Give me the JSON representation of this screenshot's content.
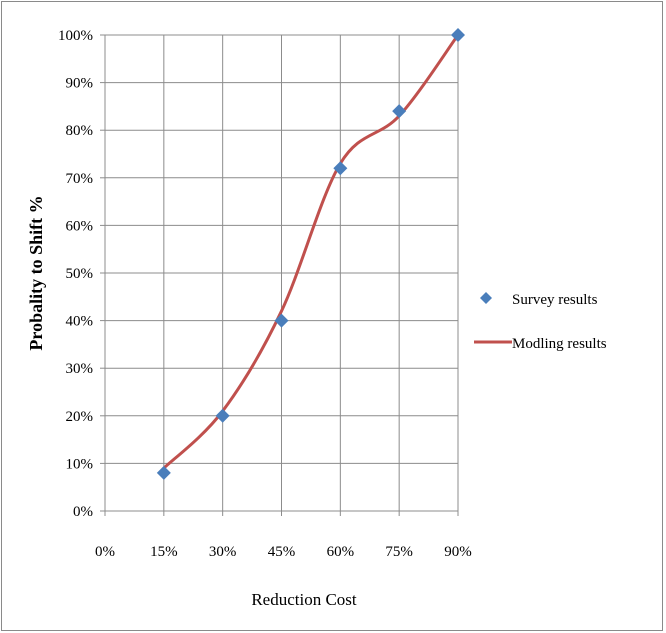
{
  "chart_data": {
    "type": "line",
    "x_label": "Reduction Cost",
    "y_label": "Probality  to Shift %",
    "x_ticks": [
      "0%",
      "15%",
      "30%",
      "45%",
      "60%",
      "75%",
      "90%"
    ],
    "y_ticks": [
      "0%",
      "10%",
      "20%",
      "30%",
      "40%",
      "50%",
      "60%",
      "70%",
      "80%",
      "90%",
      "100%"
    ],
    "xlim": [
      0,
      90
    ],
    "ylim": [
      0,
      100
    ],
    "grid": true,
    "legend_position": "right",
    "series": [
      {
        "name": "Survey results",
        "kind": "scatter",
        "marker": "diamond",
        "color": "#4a7ebb",
        "x": [
          15,
          30,
          45,
          60,
          75,
          90
        ],
        "y": [
          8,
          20,
          40,
          72,
          84,
          100
        ]
      },
      {
        "name": "Modling results",
        "kind": "smooth-line",
        "color": "#c0504d",
        "x": [
          15,
          30,
          45,
          60,
          75,
          90
        ],
        "y": [
          9,
          21,
          42,
          73,
          83,
          100
        ]
      }
    ]
  }
}
